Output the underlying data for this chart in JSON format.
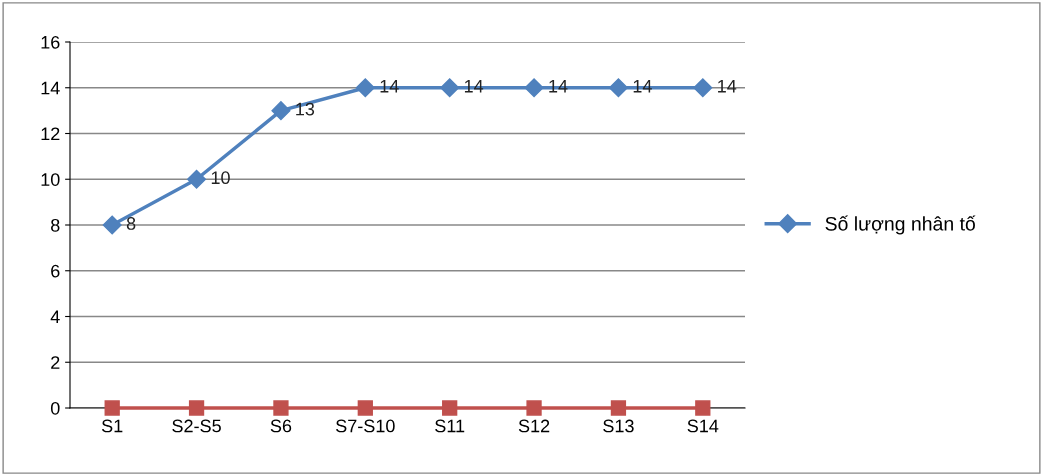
{
  "chart_data": {
    "type": "line",
    "categories": [
      "S1",
      "S2-S5",
      "S6",
      "S7-S10",
      "S11",
      "S12",
      "S13",
      "S14"
    ],
    "series": [
      {
        "name": "Số lượng nhân tố",
        "color": "#4f81bd",
        "marker": "diamond",
        "values": [
          8,
          10,
          13,
          14,
          14,
          14,
          14,
          14
        ],
        "value_labels": [
          "8",
          "10",
          "13",
          "14",
          "14",
          "14",
          "14",
          "14"
        ]
      },
      {
        "color": "#c0504d",
        "marker": "square",
        "values": [
          0,
          0,
          0,
          0,
          0,
          0,
          0,
          0
        ]
      }
    ],
    "ylim": [
      0,
      16
    ],
    "yticks": [
      0,
      2,
      4,
      6,
      8,
      10,
      12,
      14,
      16
    ],
    "grid": "y",
    "legend": "right"
  }
}
